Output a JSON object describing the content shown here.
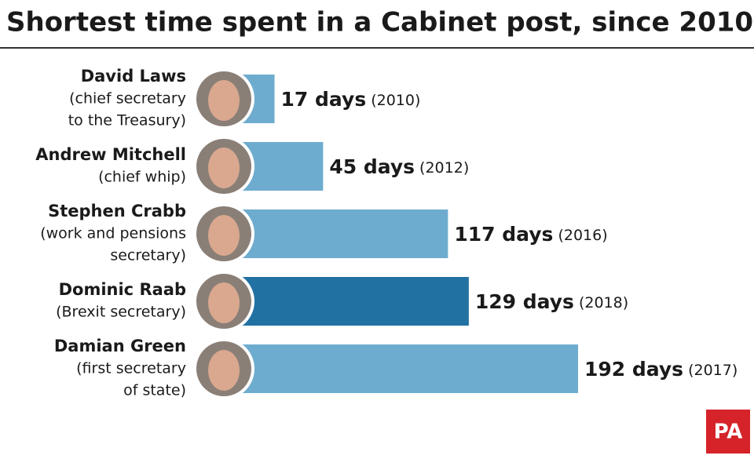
{
  "chart_data": {
    "type": "bar",
    "orientation": "horizontal",
    "title": "Shortest time spent in a Cabinet post, since 2010",
    "categories": [
      "David Laws",
      "Andrew Mitchell",
      "Stephen Crabb",
      "Dominic Raab",
      "Damian Green"
    ],
    "roles": [
      [
        "(chief secretary",
        "to the Treasury)"
      ],
      [
        "(chief whip)"
      ],
      [
        "(work and pensions",
        "secretary)"
      ],
      [
        "(Brexit secretary)"
      ],
      [
        "(first secretary",
        "of state)"
      ]
    ],
    "values": [
      17,
      45,
      117,
      129,
      192
    ],
    "value_labels": [
      "17 days",
      "45 days",
      "117 days",
      "129 days",
      "192 days"
    ],
    "notes": [
      "(2010)",
      "(2012)",
      "(2016)",
      "(2018)",
      "(2017)"
    ],
    "colors": [
      "#6eaccf",
      "#6eaccf",
      "#6eaccf",
      "#2271a3",
      "#6eaccf"
    ],
    "source": "PA"
  }
}
